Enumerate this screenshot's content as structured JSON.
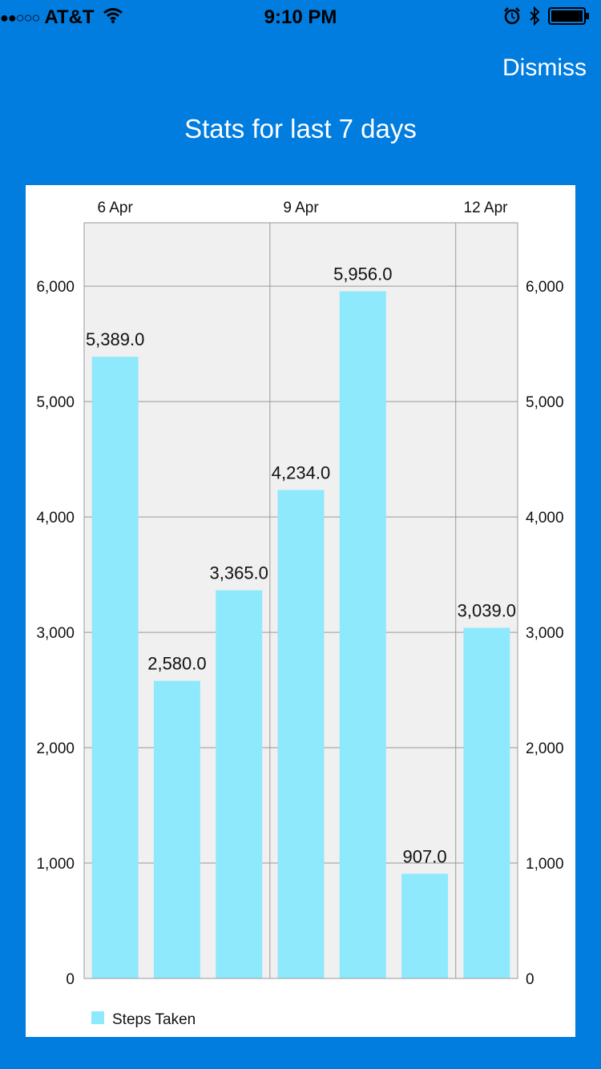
{
  "status_bar": {
    "signal": "●●○○○",
    "carrier": "AT&T",
    "time": "9:10 PM",
    "icons": [
      "wifi-icon",
      "alarm-icon",
      "bluetooth-icon",
      "battery-icon"
    ]
  },
  "nav": {
    "dismiss_label": "Dismiss",
    "title": "Stats for last 7 days"
  },
  "colors": {
    "background": "#017cdf",
    "bar": "#8fe9fd",
    "plot_background": "#f0f0f0",
    "grid": "#999999"
  },
  "chart_data": {
    "type": "bar",
    "x_top_labels": [
      {
        "index": 0,
        "label": "6 Apr"
      },
      {
        "index": 3,
        "label": "9 Apr"
      },
      {
        "index": 6,
        "label": "12 Apr"
      }
    ],
    "series": [
      {
        "name": "Steps Taken",
        "values": [
          5389.0,
          2580.0,
          3365.0,
          4234.0,
          5956.0,
          907.0,
          3039.0
        ],
        "value_labels": [
          "5,389.0",
          "2,580.0",
          "3,365.0",
          "4,234.0",
          "5,956.0",
          "907.0",
          "3,039.0"
        ]
      }
    ],
    "ylim": [
      0,
      6550
    ],
    "yticks": [
      0,
      1000,
      2000,
      3000,
      4000,
      5000,
      6000
    ],
    "ytick_labels": [
      "0",
      "1,000",
      "2,000",
      "3,000",
      "4,000",
      "5,000",
      "6,000"
    ],
    "y_axes": [
      "left",
      "right"
    ],
    "vertical_grid_at": [
      3,
      6
    ],
    "grid": true,
    "legend": {
      "placement": "bottom-left",
      "label": "Steps Taken"
    }
  }
}
